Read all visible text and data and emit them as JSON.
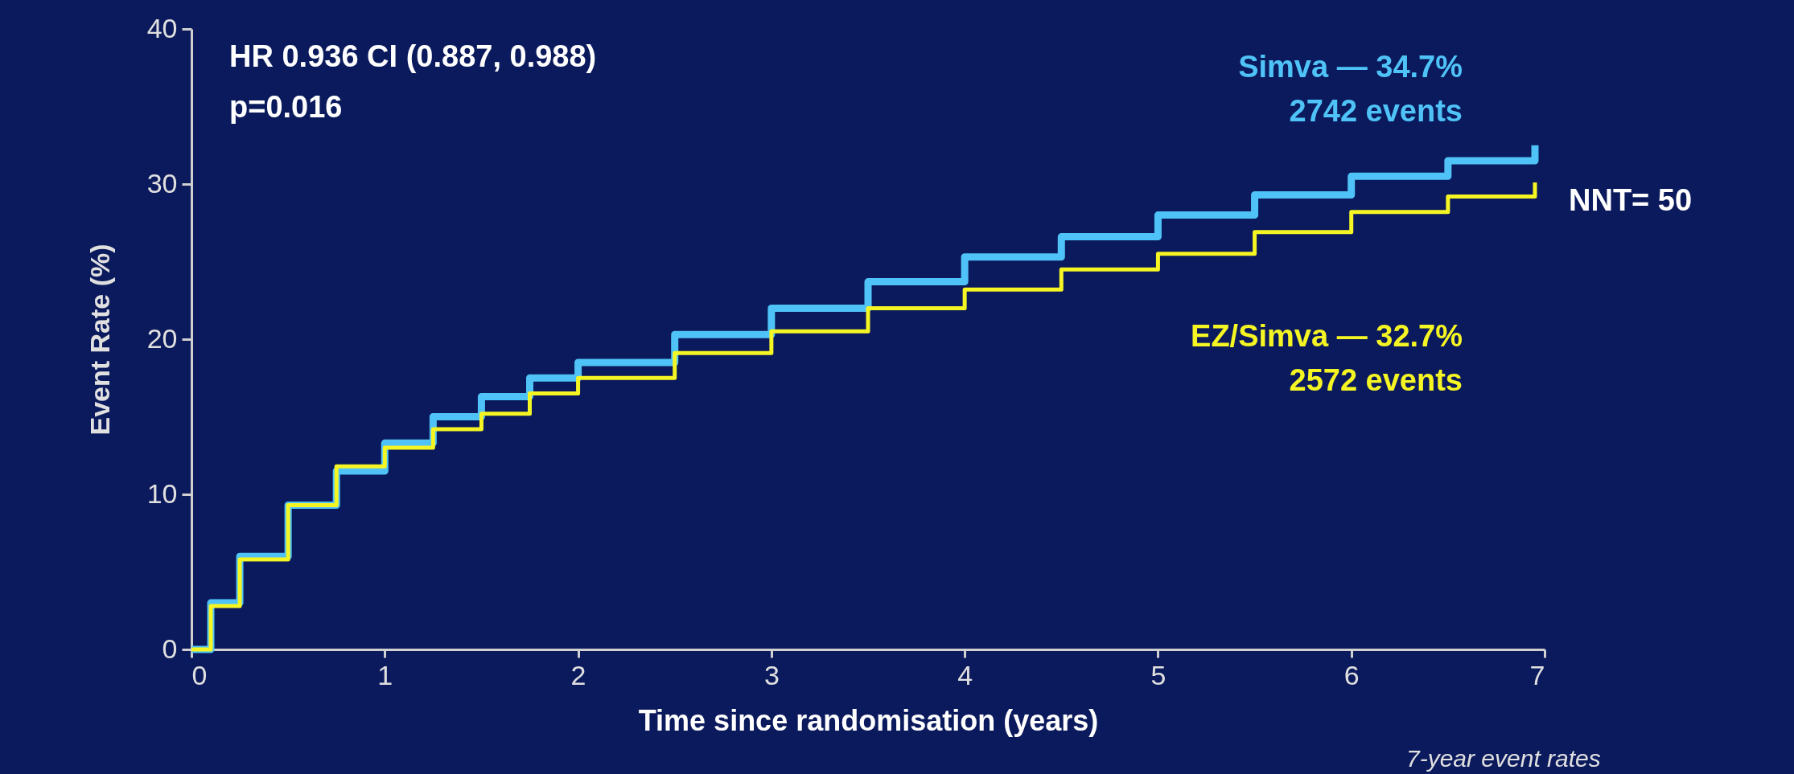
{
  "chart_data": {
    "type": "step",
    "xlabel": "Time since randomisation (years)",
    "ylabel": "Event Rate (%)",
    "xlim": [
      0,
      7
    ],
    "xticks": [
      0,
      1,
      2,
      3,
      4,
      5,
      6,
      7
    ],
    "ylim": [
      0,
      40
    ],
    "yticks": [
      0,
      10,
      20,
      30,
      40
    ],
    "grid": false,
    "legend": false,
    "line_style": "solid",
    "series": [
      {
        "name": "Simva — 34.7%",
        "color": "#4fc3f7",
        "x": [
          0,
          0.1,
          0.25,
          0.5,
          0.75,
          1,
          1.25,
          1.5,
          1.75,
          2,
          2.5,
          3,
          3.5,
          4,
          4.5,
          5,
          5.5,
          6,
          6.5,
          6.95
        ],
        "values": [
          0,
          3,
          6,
          9.3,
          11.5,
          13.3,
          15,
          16.3,
          17.5,
          18.5,
          20.3,
          22,
          23.7,
          25.3,
          26.6,
          28,
          29.3,
          30.5,
          31.5,
          32.5
        ]
      },
      {
        "name": "EZ/Simva — 32.7%",
        "color": "#f5f523",
        "x": [
          0,
          0.1,
          0.25,
          0.5,
          0.75,
          1,
          1.25,
          1.5,
          1.75,
          2,
          2.5,
          3,
          3.5,
          4,
          4.5,
          5,
          5.5,
          6,
          6.5,
          6.95
        ],
        "values": [
          0,
          2.8,
          5.8,
          9.3,
          11.8,
          13,
          14.2,
          15.2,
          16.5,
          17.5,
          19.1,
          20.5,
          22,
          23.2,
          24.5,
          25.5,
          26.9,
          28.2,
          29.2,
          30.1
        ]
      }
    ],
    "annotations": [
      "HR 0.936 CI (0.887, 0.988)",
      "p=0.016",
      "2742 events",
      "2572 events",
      "NNT= 50",
      "7-year event rates"
    ]
  }
}
